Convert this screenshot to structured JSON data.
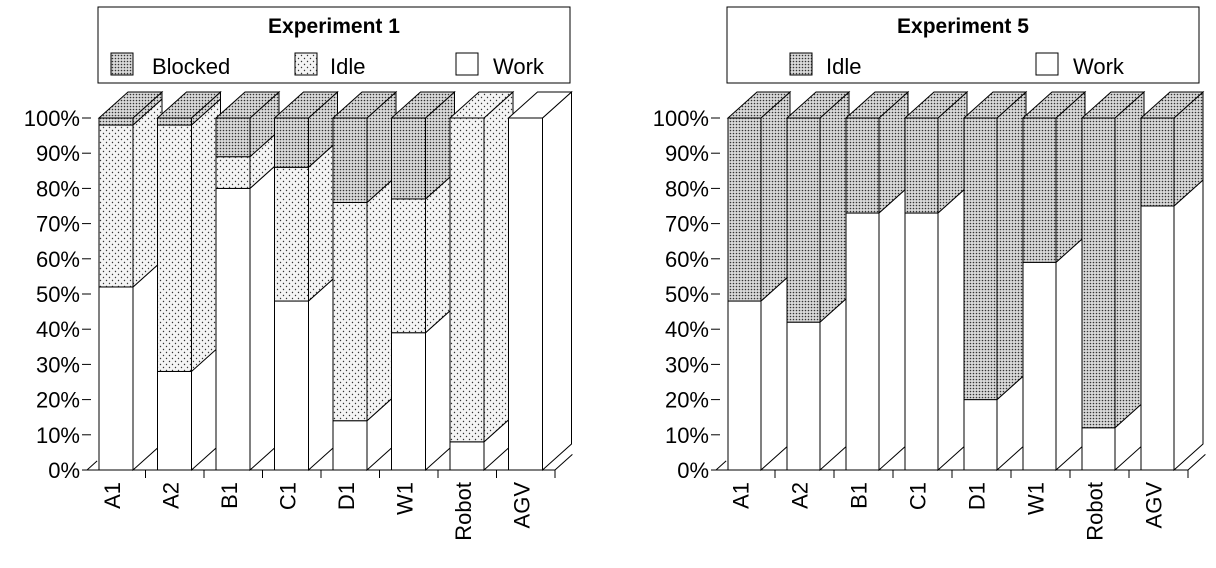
{
  "colors": {
    "work": "#ffffff",
    "stroke": "#000000",
    "dot": "#2a2a2a",
    "idle_bg": "#f2f2f2",
    "dense_bg": "#c4c4c4"
  },
  "chart_data": [
    {
      "type": "bar",
      "stacked": true,
      "three_d": true,
      "title": "Experiment 1",
      "categories": [
        "A1",
        "A2",
        "B1",
        "C1",
        "D1",
        "W1",
        "Robot",
        "AGV"
      ],
      "yticks": [
        "0%",
        "10%",
        "20%",
        "30%",
        "40%",
        "50%",
        "60%",
        "70%",
        "80%",
        "90%",
        "100%"
      ],
      "ylim": [
        0,
        100
      ],
      "legend_position": "top",
      "series": [
        {
          "name": "Work",
          "pattern": "solid",
          "values": [
            52,
            28,
            80,
            48,
            14,
            39,
            8,
            100
          ]
        },
        {
          "name": "Idle",
          "pattern": "light-dots",
          "values": [
            46,
            70,
            9,
            38,
            62,
            38,
            92,
            0
          ]
        },
        {
          "name": "Blocked",
          "pattern": "dense-dots",
          "values": [
            2,
            2,
            11,
            14,
            24,
            23,
            0,
            0
          ]
        }
      ],
      "legend_order": [
        "Blocked",
        "Idle",
        "Work"
      ]
    },
    {
      "type": "bar",
      "stacked": true,
      "three_d": true,
      "title": "Experiment 5",
      "categories": [
        "A1",
        "A2",
        "B1",
        "C1",
        "D1",
        "W1",
        "Robot",
        "AGV"
      ],
      "yticks": [
        "0%",
        "10%",
        "20%",
        "30%",
        "40%",
        "50%",
        "60%",
        "70%",
        "80%",
        "90%",
        "100%"
      ],
      "ylim": [
        0,
        100
      ],
      "legend_position": "top",
      "series": [
        {
          "name": "Work",
          "pattern": "solid",
          "values": [
            48,
            42,
            73,
            73,
            20,
            59,
            12,
            75
          ]
        },
        {
          "name": "Idle",
          "pattern": "dense-dots",
          "values": [
            52,
            58,
            27,
            27,
            80,
            41,
            88,
            25
          ]
        }
      ],
      "legend_order": [
        "Idle",
        "Work"
      ]
    }
  ]
}
